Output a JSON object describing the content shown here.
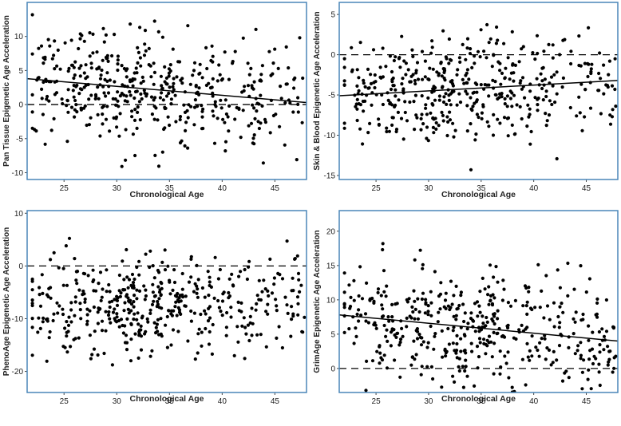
{
  "colors": {
    "frame": "#4a86b8",
    "marks": "#000000",
    "background": "#ffffff",
    "text": "#222222"
  },
  "chart_data": [
    {
      "type": "scatter",
      "panel": "top-left",
      "xlabel": "Chronological Age",
      "ylabel": "Pan Tissue Epigenetic Age Acceleration",
      "xlim": [
        21.5,
        48
      ],
      "ylim": [
        -11,
        15
      ],
      "xticks": [
        25,
        30,
        35,
        40,
        45
      ],
      "yticks": [
        -10,
        -5,
        0,
        5,
        10
      ],
      "regression_line": {
        "x": [
          21.5,
          48
        ],
        "y": [
          3.8,
          0.3
        ]
      },
      "reference_line": {
        "y": 0
      },
      "n_points": 450,
      "point_cloud": {
        "center_y": 2.0,
        "sd_y": 4.2,
        "trend_slope": -0.13
      }
    },
    {
      "type": "scatter",
      "panel": "top-right",
      "xlabel": "Chronological Age",
      "ylabel": "Skin & Blood Epigenetic Age Acceleration",
      "xlim": [
        21.5,
        48
      ],
      "ylim": [
        -15.5,
        6.5
      ],
      "xticks": [
        25,
        30,
        35,
        40,
        45
      ],
      "yticks": [
        -15,
        -10,
        -5,
        0,
        5
      ],
      "regression_line": {
        "x": [
          21.5,
          48
        ],
        "y": [
          -5.1,
          -3.2
        ]
      },
      "reference_line": {
        "y": 0
      },
      "n_points": 450,
      "point_cloud": {
        "center_y": -4.2,
        "sd_y": 3.3,
        "trend_slope": 0.07
      }
    },
    {
      "type": "scatter",
      "panel": "bottom-left",
      "xlabel": "Chronological Age",
      "ylabel": "PhenoAge Epigenetic Age Acceleration",
      "xlim": [
        21.5,
        48
      ],
      "ylim": [
        -24,
        10.5
      ],
      "xticks": [
        25,
        30,
        35,
        40,
        45
      ],
      "yticks": [
        -20,
        -10,
        0,
        10
      ],
      "reference_line": {
        "y": 0
      },
      "n_points": 450,
      "point_cloud": {
        "center_y": -7.5,
        "sd_y": 4.8,
        "trend_slope": 0.0
      }
    },
    {
      "type": "scatter",
      "panel": "bottom-right",
      "xlabel": "Chronological Age",
      "ylabel": "GrimAge Epigenetic Age Acceleration",
      "xlim": [
        21.5,
        48
      ],
      "ylim": [
        -3.5,
        23
      ],
      "xticks": [
        25,
        30,
        35,
        40,
        45
      ],
      "yticks": [
        0,
        5,
        10,
        15,
        20
      ],
      "regression_line": {
        "x": [
          21.5,
          48
        ],
        "y": [
          7.8,
          4.0
        ]
      },
      "reference_line": {
        "y": 0
      },
      "n_points": 450,
      "point_cloud": {
        "center_y": 5.8,
        "sd_y": 4.2,
        "trend_slope": -0.14
      }
    }
  ]
}
